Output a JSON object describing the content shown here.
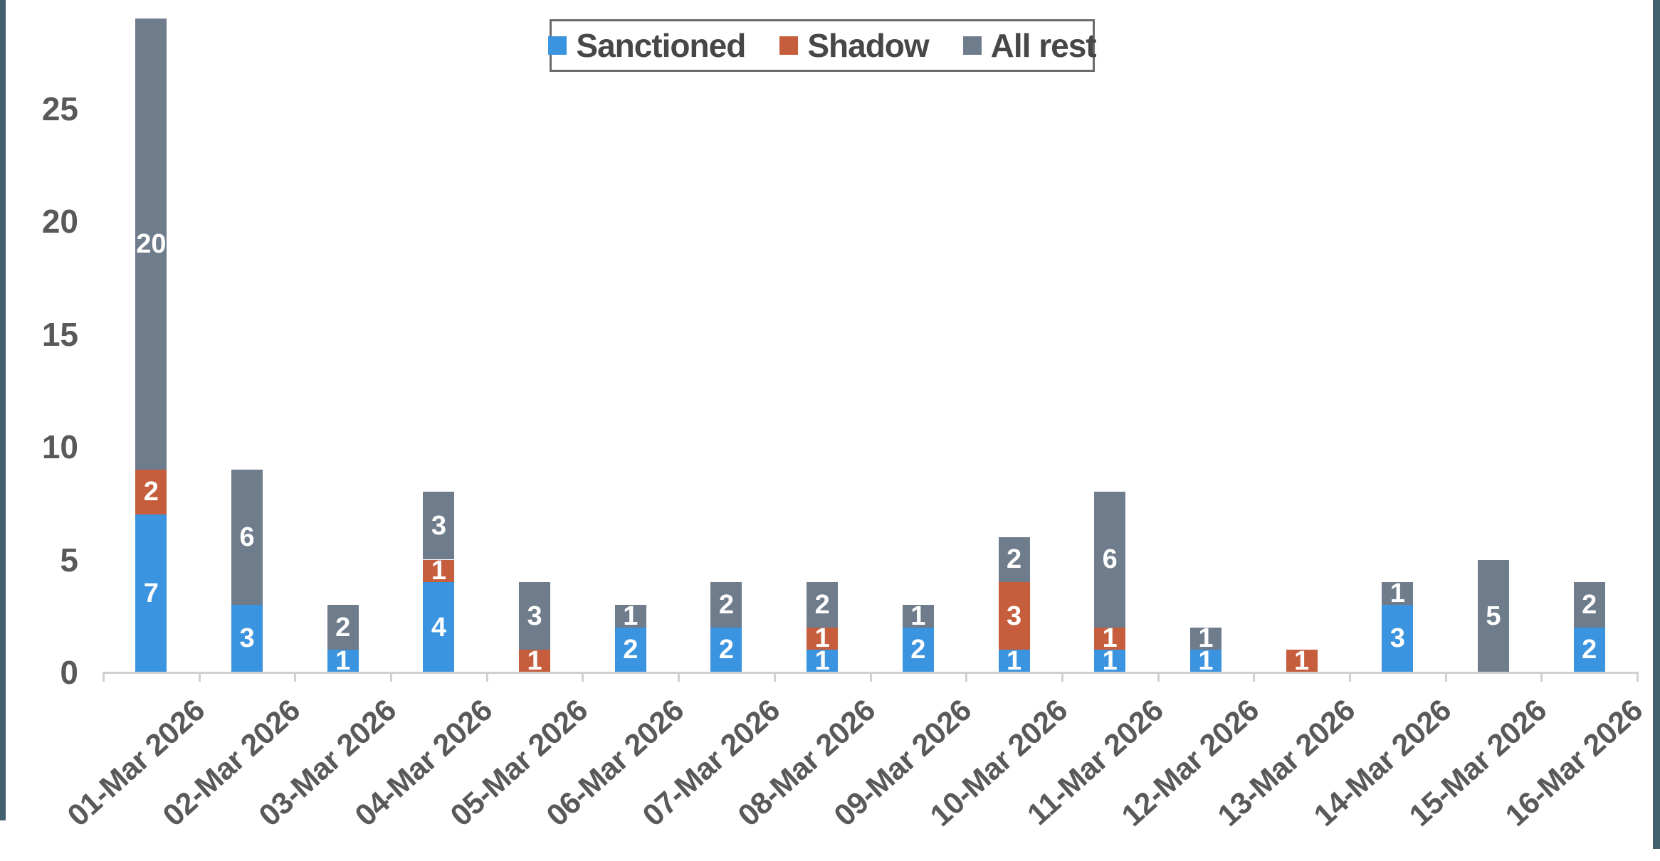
{
  "chart_data": {
    "type": "bar",
    "stacked": true,
    "title": "",
    "xlabel": "",
    "ylabel": "",
    "categories": [
      "01-Mar 2026",
      "02-Mar 2026",
      "03-Mar 2026",
      "04-Mar 2026",
      "05-Mar 2026",
      "06-Mar 2026",
      "07-Mar 2026",
      "08-Mar 2026",
      "09-Mar 2026",
      "10-Mar 2026",
      "11-Mar 2026",
      "12-Mar 2026",
      "13-Mar 2026",
      "14-Mar 2026",
      "15-Mar 2026",
      "16-Mar 2026"
    ],
    "series": [
      {
        "name": "Sanctioned",
        "color": "#3B94E0",
        "values": [
          7,
          3,
          1,
          4,
          0,
          2,
          2,
          1,
          2,
          1,
          1,
          1,
          0,
          3,
          0,
          2
        ]
      },
      {
        "name": "Shadow",
        "color": "#C65D3C",
        "values": [
          2,
          0,
          0,
          1,
          1,
          0,
          0,
          1,
          0,
          3,
          1,
          0,
          1,
          0,
          0,
          0
        ]
      },
      {
        "name": "All rest",
        "color": "#6E7C8B",
        "values": [
          20,
          6,
          2,
          3,
          3,
          1,
          2,
          2,
          1,
          2,
          6,
          1,
          0,
          1,
          5,
          2
        ]
      }
    ],
    "totals": [
      29,
      9,
      3,
      8,
      4,
      3,
      4,
      4,
      3,
      6,
      8,
      2,
      1,
      4,
      5,
      4
    ],
    "ylim": [
      0,
      29.8
    ],
    "yticks": [
      0,
      5,
      10,
      15,
      20,
      25
    ],
    "grid": false,
    "legend_position": "top-center",
    "data_labels": "white bold numbers inside each segment, zeros hidden"
  },
  "colors": {
    "background": "#FFFFFF",
    "axis_line": "#D0D0D0",
    "axis_tick_label": "#595959",
    "legend_text": "#474747",
    "legend_border": "#6A6A6A",
    "data_label": "#FFFFFF",
    "window_edge": "#42606D"
  }
}
